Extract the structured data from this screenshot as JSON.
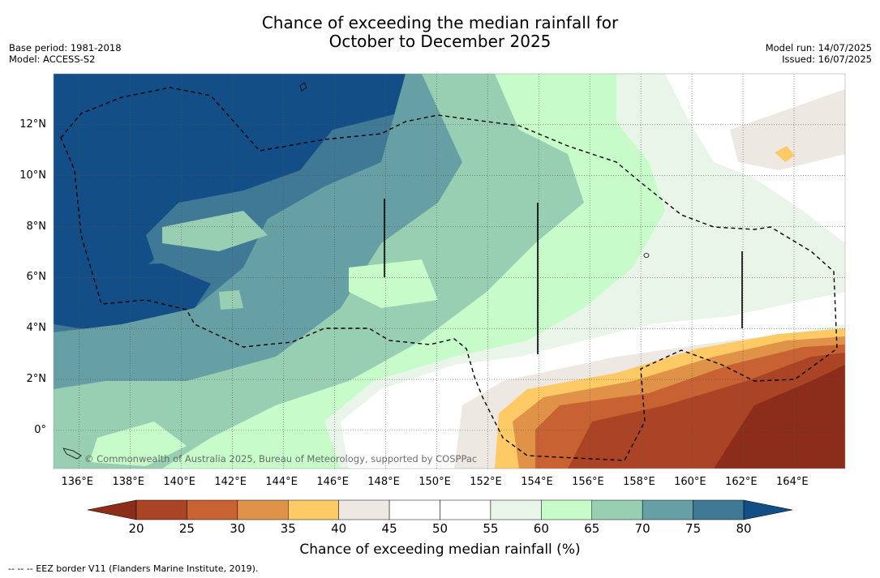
{
  "title_line1": "Chance of exceeding the median rainfall for",
  "title_line2": "October to December 2025",
  "base_period": "Base period: 1981-2018",
  "model": "Model: ACCESS-S2",
  "model_run": "Model run: 14/07/2025",
  "issued": "Issued: 16/07/2025",
  "attribution": "© Commonwealth of Australia 2025, Bureau of Meteorology, supported by COSPPac",
  "lon_labels": [
    "136°E",
    "138°E",
    "140°E",
    "142°E",
    "144°E",
    "146°E",
    "148°E",
    "150°E",
    "152°E",
    "154°E",
    "156°E",
    "158°E",
    "160°E",
    "162°E",
    "164°E"
  ],
  "lat_labels": [
    "12°N",
    "10°N",
    "8°N",
    "6°N",
    "4°N",
    "2°N",
    "0°"
  ],
  "colorbar": {
    "ticks": [
      "20",
      "25",
      "30",
      "35",
      "40",
      "45",
      "50",
      "55",
      "60",
      "65",
      "70",
      "75",
      "80"
    ],
    "colors": [
      "#8b2d1a",
      "#ab4424",
      "#c96233",
      "#e09248",
      "#fdca66",
      "#ede8e2",
      "#ffffff",
      "#ffffff",
      "#e9f5e8",
      "#c8fbca",
      "#98cfb3",
      "#67a0a4",
      "#3f7996",
      "#144e86"
    ],
    "title": "Chance of exceeding median rainfall (%)"
  },
  "footnote": "-- -- -- EEZ border V11 (Flanders Marine Institute, 2019)."
}
